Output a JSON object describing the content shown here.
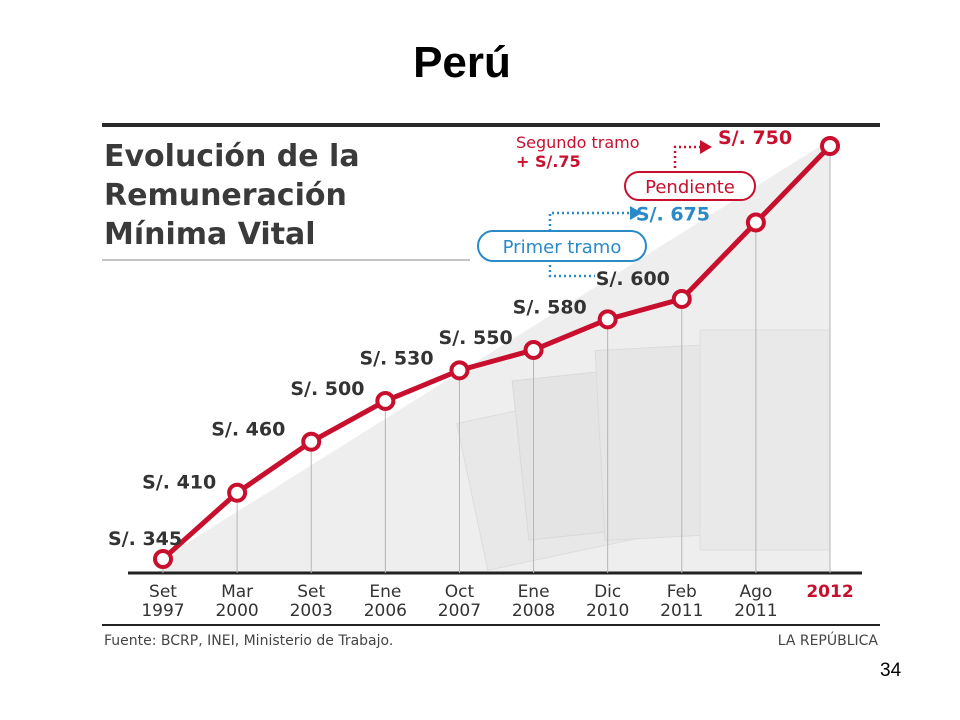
{
  "slide": {
    "title": "Perú",
    "page_number": "34"
  },
  "chart_data": {
    "type": "line",
    "title_lines": [
      "Evolución de la",
      "Remuneración",
      "Mínima Vital"
    ],
    "categories": [
      [
        "Set",
        "1997"
      ],
      [
        "Mar",
        "2000"
      ],
      [
        "Set",
        "2003"
      ],
      [
        "Ene",
        "2006"
      ],
      [
        "Oct",
        "2007"
      ],
      [
        "Ene",
        "2008"
      ],
      [
        "Dic",
        "2010"
      ],
      [
        "Feb",
        "2011"
      ],
      [
        "Ago",
        "2011"
      ],
      [
        "2012"
      ]
    ],
    "values": [
      345,
      410,
      460,
      500,
      530,
      550,
      580,
      600,
      675,
      750
    ],
    "value_labels": [
      "S/. 345",
      "S/. 410",
      "S/. 460",
      "S/. 500",
      "S/. 530",
      "S/. 550",
      "S/. 580",
      "S/. 600",
      "S/. 675",
      "S/. 750"
    ],
    "highlight_category_index": 9,
    "annotations": {
      "first_tranche": "Primer tramo",
      "pending": "Pendiente",
      "second_tranche_line1": "Segundo tramo",
      "second_tranche_line2": "+ S/.75"
    },
    "source": "Fuente: BCRP, INEI, Ministerio de Trabajo.",
    "publisher": "LA REPÚBLICA",
    "colors": {
      "line": "#c8102e",
      "accent_blue": "#2a8ac8",
      "text": "#333333"
    }
  }
}
